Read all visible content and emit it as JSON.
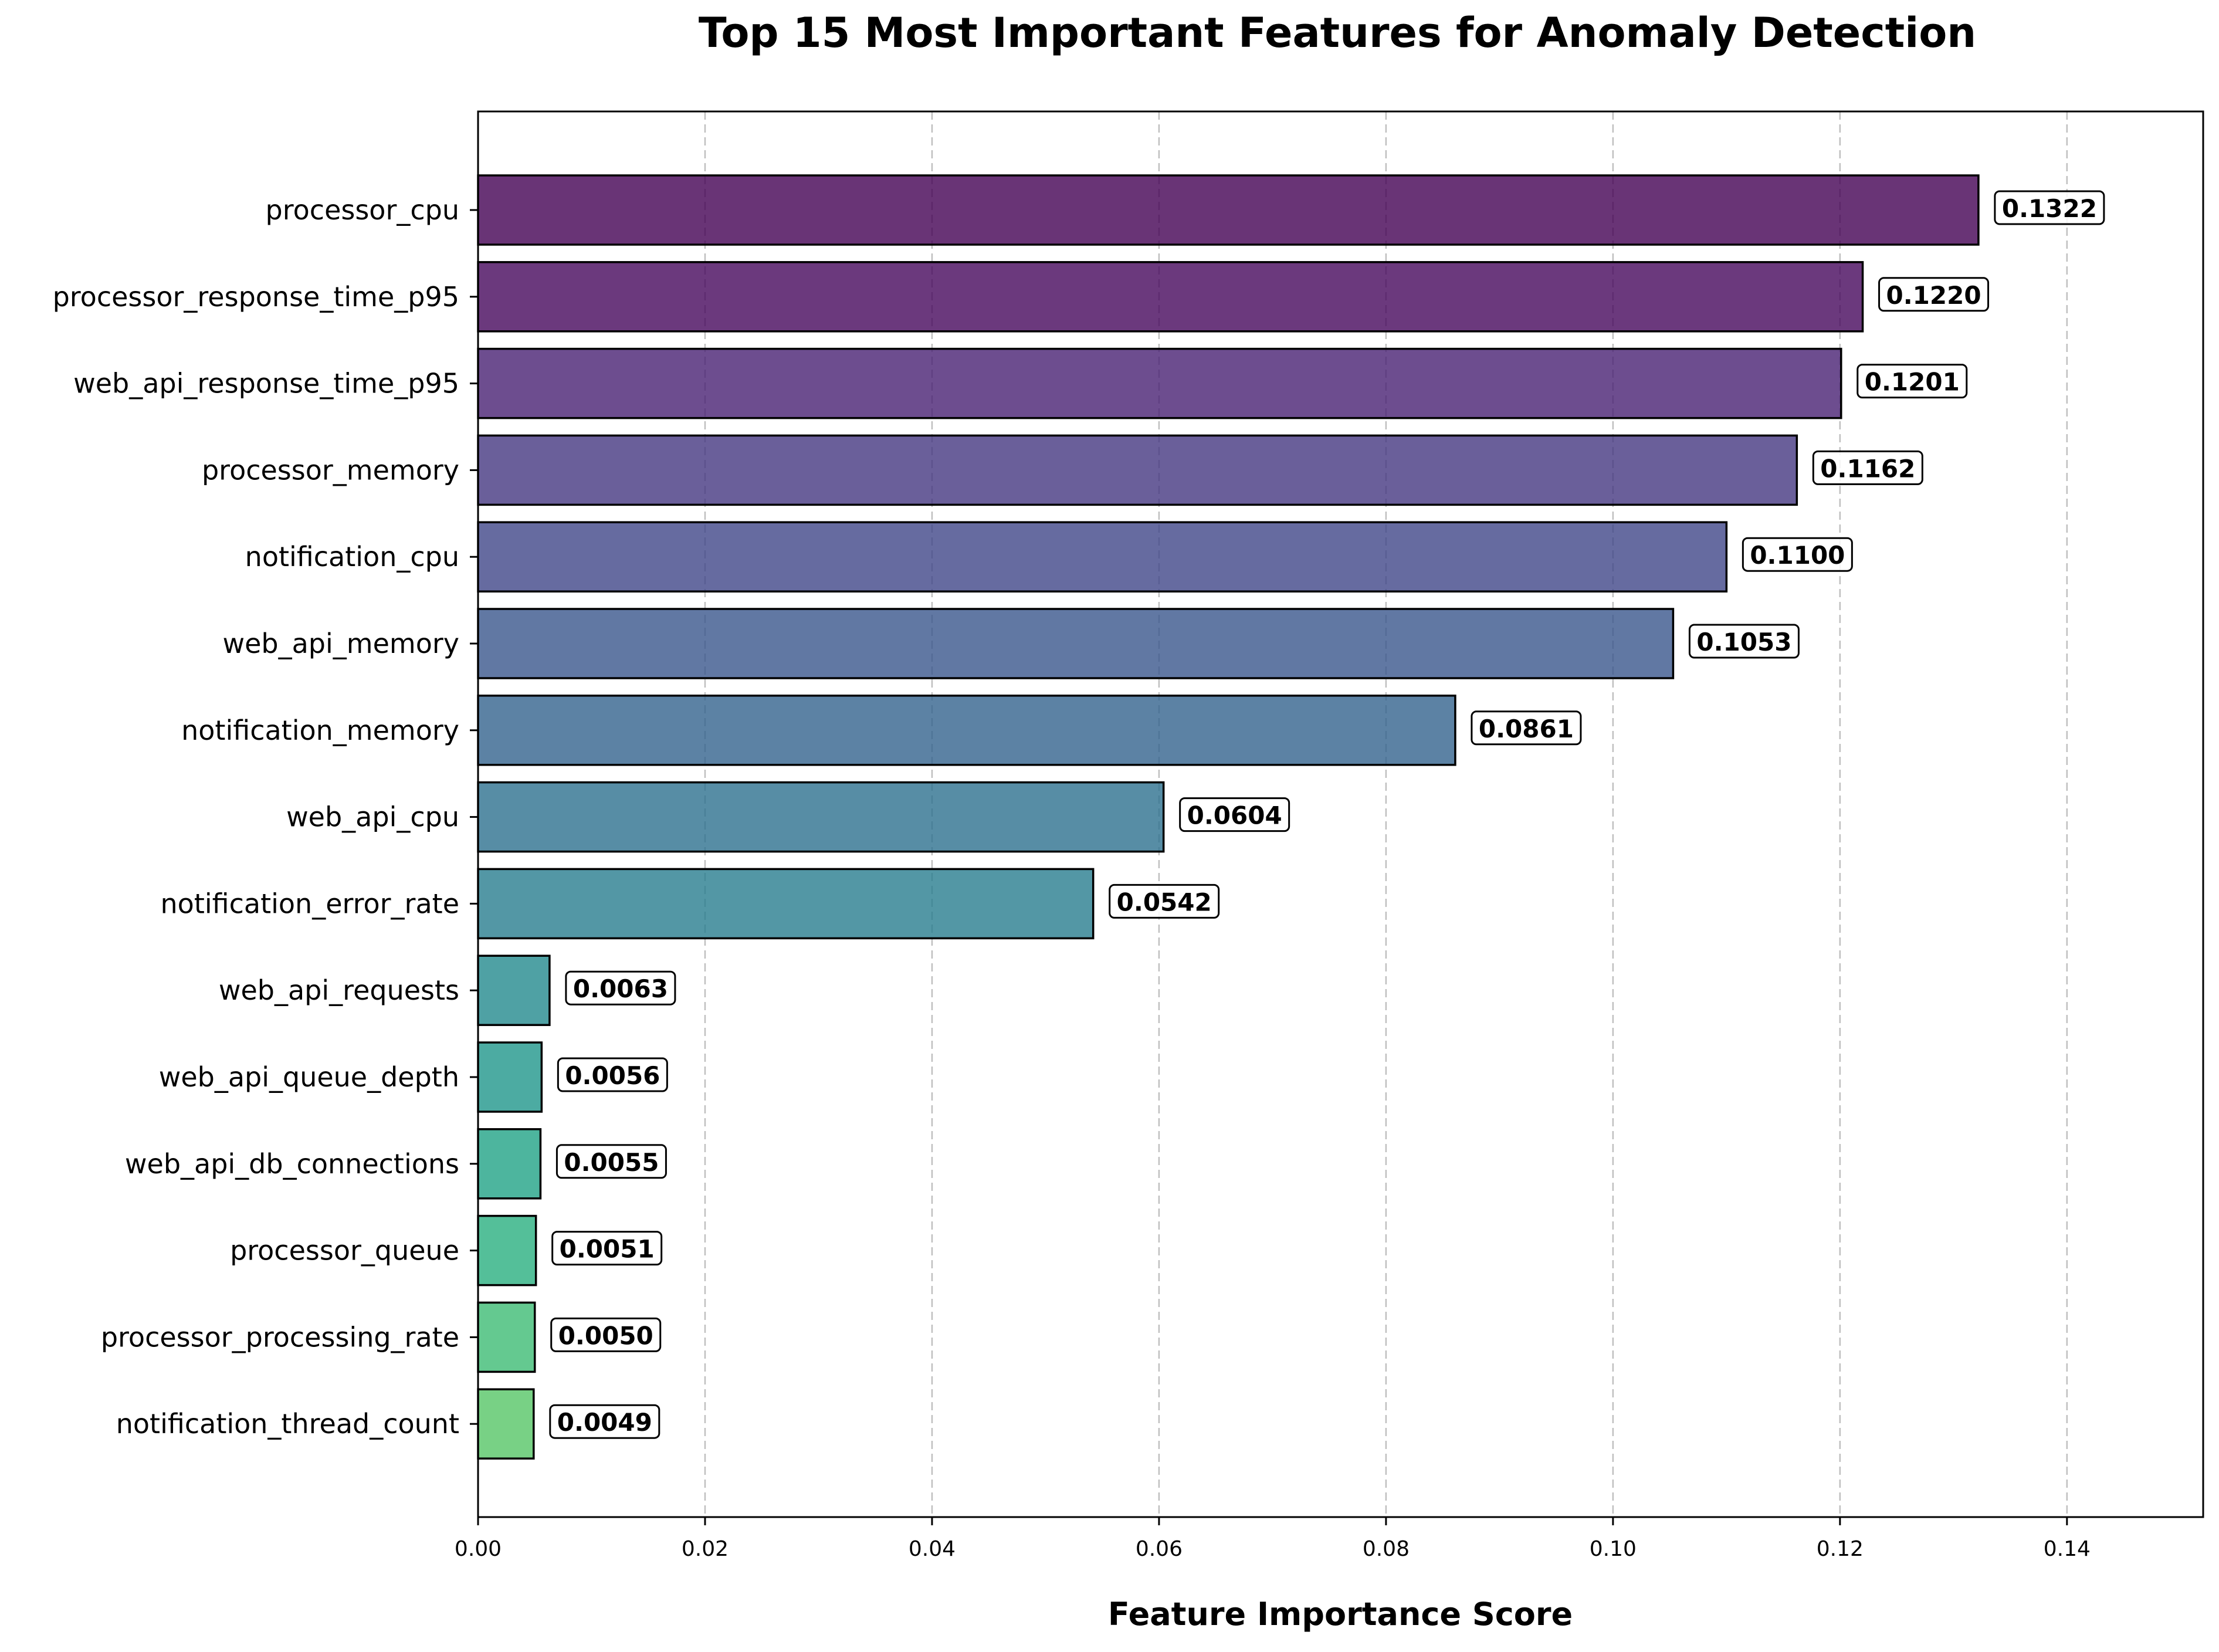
{
  "chart_data": {
    "type": "bar",
    "orientation": "horizontal",
    "title": "Top 15 Most Important Features for Anomaly Detection",
    "xlabel": "Feature Importance Score",
    "ylabel": "",
    "xlim": [
      0,
      0.152
    ],
    "x_ticks": [
      "0.00",
      "0.02",
      "0.04",
      "0.06",
      "0.08",
      "0.10",
      "0.12",
      "0.14"
    ],
    "grid": "x-dashed",
    "legend": "none",
    "categories": [
      "processor_cpu",
      "processor_response_time_p95",
      "web_api_response_time_p95",
      "processor_memory",
      "notification_cpu",
      "web_api_memory",
      "notification_memory",
      "web_api_cpu",
      "notification_error_rate",
      "web_api_requests",
      "web_api_queue_depth",
      "web_api_db_connections",
      "processor_queue",
      "processor_processing_rate",
      "notification_thread_count"
    ],
    "values": [
      0.1322,
      0.122,
      0.1201,
      0.1162,
      0.11,
      0.1053,
      0.0861,
      0.0604,
      0.0542,
      0.0063,
      0.0056,
      0.0055,
      0.0051,
      0.005,
      0.0049
    ],
    "data_labels": [
      "0.1322",
      "0.1220",
      "0.1201",
      "0.1162",
      "0.1100",
      "0.1053",
      "0.0861",
      "0.0604",
      "0.0542",
      "0.0063",
      "0.0056",
      "0.0055",
      "0.0051",
      "0.0050",
      "0.0049"
    ],
    "colors": [
      "#440154",
      "#482173",
      "#433e85",
      "#38588c",
      "#2d708e",
      "#25858e",
      "#1e9b8a",
      "#2ab07f",
      "#52c569",
      "#86d549",
      "#c2df23",
      "#fde725"
    ],
    "bar_colors": [
      "#440154",
      "#46085c",
      "#482173",
      "#453781",
      "#404688",
      "#39568c",
      "#33638d",
      "#2d708e",
      "#287d8e",
      "#238a8d",
      "#1f968b",
      "#20a386",
      "#29af7f",
      "#3dbc74",
      "#56c667"
    ],
    "bar_opacity": 0.8,
    "bar_edge_color": "#000000"
  }
}
